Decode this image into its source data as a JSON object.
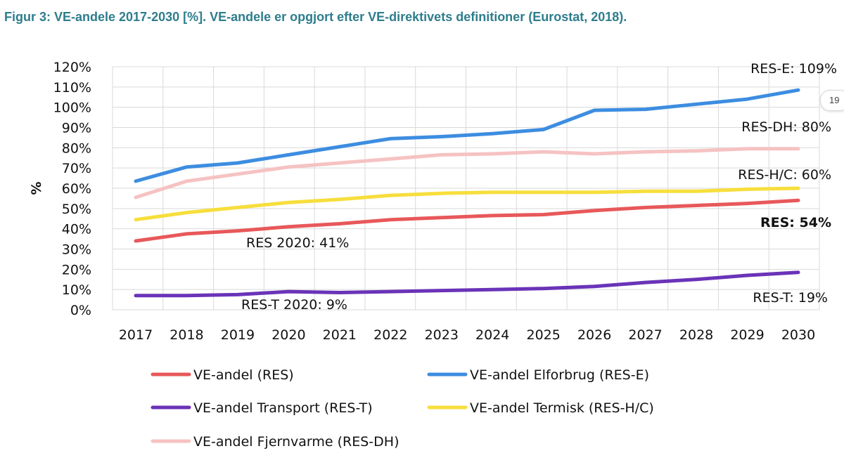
{
  "caption": "Figur 3: VE-andele 2017-2030 [%]. VE-andele er opgjort efter VE-direktivets definitioner (Eurostat, 2018).",
  "page_badge": "19",
  "chart_data": {
    "type": "line",
    "title": "",
    "xlabel": "",
    "ylabel": "%",
    "ylim": [
      0,
      120
    ],
    "yticks": [
      "0%",
      "10%",
      "20%",
      "30%",
      "40%",
      "50%",
      "60%",
      "70%",
      "80%",
      "90%",
      "100%",
      "110%",
      "120%"
    ],
    "x": [
      "2017",
      "2018",
      "2019",
      "2020",
      "2021",
      "2022",
      "2023",
      "2024",
      "2025",
      "2026",
      "2027",
      "2028",
      "2029",
      "2030"
    ],
    "grid": true,
    "series": [
      {
        "name": "VE-andel (RES)",
        "key": "res",
        "color": "#e8585a",
        "values": [
          34,
          37.5,
          39,
          41,
          42.5,
          44.5,
          45.5,
          46.5,
          47,
          49,
          50.5,
          51.5,
          52.5,
          54
        ]
      },
      {
        "name": "VE-andel Elforbrug (RES-E)",
        "key": "rese",
        "color": "#3d8de0",
        "values": [
          63.5,
          70.5,
          72.5,
          76.5,
          80.5,
          84.5,
          85.5,
          87,
          89,
          98.5,
          99,
          101.5,
          104,
          108.5
        ]
      },
      {
        "name": "VE-andel Transport (RES-T)",
        "key": "rest",
        "color": "#6a33b8",
        "values": [
          7,
          7,
          7.5,
          9,
          8.5,
          9,
          9.5,
          10,
          10.5,
          11.5,
          13.5,
          15,
          17,
          18.5
        ]
      },
      {
        "name": "VE-andel Termisk (RES-H/C)",
        "key": "reshc",
        "color": "#f7de3c",
        "values": [
          44.5,
          48,
          50.5,
          53,
          54.5,
          56.5,
          57.5,
          58,
          58,
          58,
          58.5,
          58.5,
          59.5,
          60
        ]
      },
      {
        "name": "VE-andel Fjernvarme (RES-DH)",
        "key": "resdh",
        "color": "#f6c2c2",
        "values": [
          55.5,
          63.5,
          67,
          70.5,
          72.5,
          74.5,
          76.5,
          77,
          78,
          77,
          78,
          78.5,
          79.5,
          79.5
        ]
      }
    ],
    "annotations": [
      {
        "text": "RES-E: 109%",
        "bold": false
      },
      {
        "text": "RES-DH: 80%",
        "bold": false
      },
      {
        "text": "RES-H/C: 60%",
        "bold": false
      },
      {
        "text": "RES: 54%",
        "bold": true
      },
      {
        "text": "RES 2020: 41%",
        "bold": false
      },
      {
        "text": "RES-T 2020: 9%",
        "bold": false
      },
      {
        "text": "RES-T: 19%",
        "bold": false
      }
    ],
    "legend": {
      "position": "bottom",
      "order": [
        "res",
        "rese",
        "rest",
        "reshc",
        "resdh"
      ]
    }
  }
}
